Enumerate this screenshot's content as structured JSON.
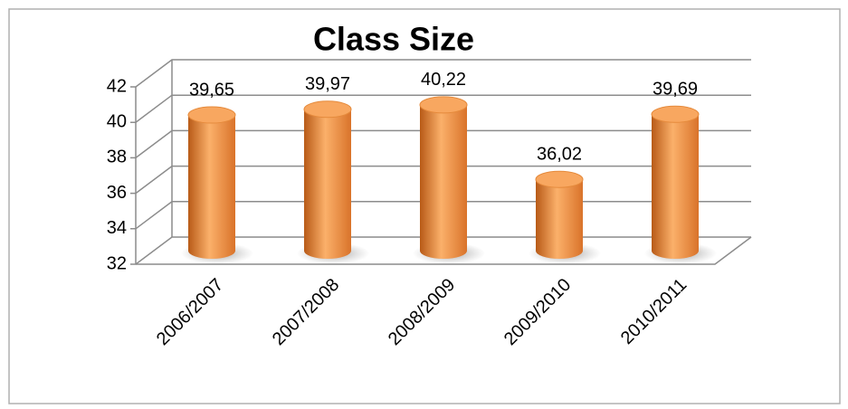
{
  "chart_data": {
    "type": "bar",
    "title": "Class Size",
    "categories": [
      "2006/2007",
      "2007/2008",
      "2008/2009",
      "2009/2010",
      "2010/2011"
    ],
    "values": [
      39.65,
      39.97,
      40.22,
      36.02,
      39.69
    ],
    "value_labels": [
      "39,65",
      "39,97",
      "40,22",
      "36,02",
      "39,69"
    ],
    "color": "#f79646",
    "ylim": [
      32,
      42
    ],
    "yticks": [
      32,
      34,
      36,
      38,
      40,
      42
    ],
    "grid": true
  }
}
